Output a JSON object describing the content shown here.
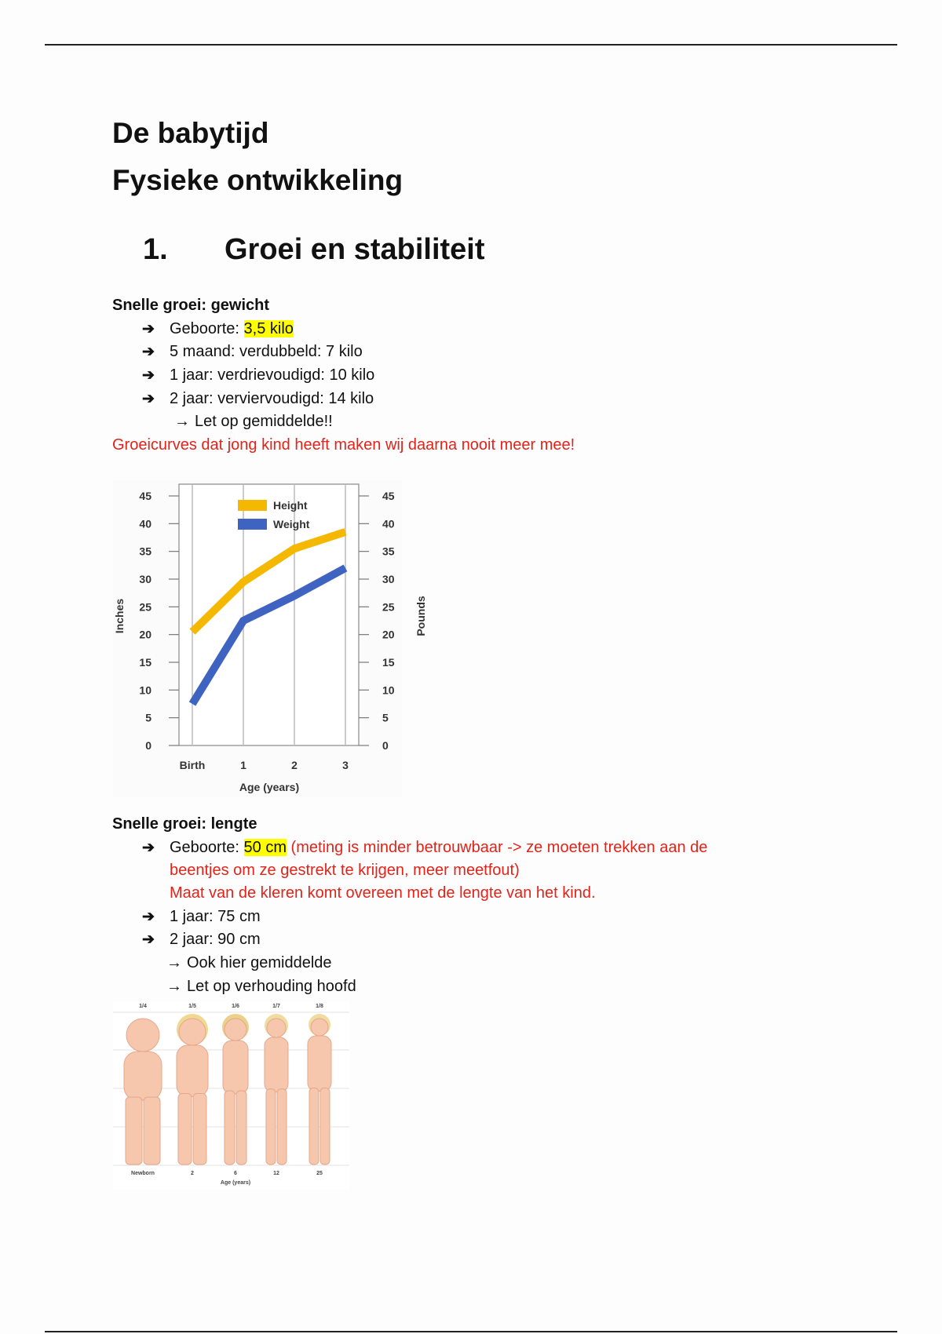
{
  "document": {
    "title_line1": "De babytijd",
    "title_line2": "Fysieke ontwikkeling",
    "section": {
      "number": "1.",
      "title": "Groei en stabiliteit"
    }
  },
  "weight": {
    "heading": "Snelle groei: gewicht",
    "items": [
      {
        "prefix": "Geboorte: ",
        "highlight": "3,5 kilo"
      },
      {
        "text": "5 maand: verdubbeld: 7 kilo"
      },
      {
        "text": "1 jaar: verdrievoudigd: 10 kilo"
      },
      {
        "text": "2 jaar: verviervoudigd: 14 kilo"
      }
    ],
    "sub_note": "Let op gemiddelde!!",
    "red_note": "Groeicurves dat jong kind heeft maken wij daarna nooit meer mee!"
  },
  "length": {
    "heading": "Snelle groei: lengte",
    "items": [
      {
        "prefix": "Geboorte: ",
        "highlight": "50 cm",
        "red_1": " (meting is minder betrouwbaar -> ze moeten trekken aan de",
        "red_2": "beentjes om ze gestrekt te krijgen, meer meetfout)",
        "red_3": "Maat van de kleren komt overeen met de lengte van het kind."
      },
      {
        "text": "1 jaar: 75 cm"
      },
      {
        "text": "2 jaar: 90 cm"
      }
    ],
    "sub_notes": [
      "Ook hier gemiddelde",
      "Let op verhouding hoofd"
    ]
  },
  "colors": {
    "highlight": "#ffff00",
    "note_red": "#e2231a",
    "height_series": "#f5b800",
    "weight_series": "#3f63c0"
  },
  "chart_data": {
    "type": "line",
    "categories": [
      "Birth",
      "1",
      "2",
      "3"
    ],
    "xlabel": "Age (years)",
    "ylabel_left": "Inches",
    "ylabel_right": "Pounds",
    "ylim": [
      0,
      45
    ],
    "yticks": [
      "0",
      "5",
      "10",
      "15",
      "20",
      "25",
      "30",
      "35",
      "40",
      "45"
    ],
    "legend_position": "top-center",
    "grid": "vertical",
    "series": [
      {
        "name": "Height",
        "color": "#f5b800",
        "values": [
          20.5,
          29.5,
          35.5,
          38.5
        ]
      },
      {
        "name": "Weight",
        "color": "#3f63c0",
        "values": [
          7.5,
          22.5,
          27,
          32
        ]
      }
    ]
  },
  "proportions_figure": {
    "ratios": [
      "1/4",
      "1/5",
      "1/6",
      "1/7",
      "1/8"
    ],
    "ages": [
      "Newborn",
      "2",
      "6",
      "12",
      "25"
    ],
    "xlabel": "Age (years)"
  }
}
